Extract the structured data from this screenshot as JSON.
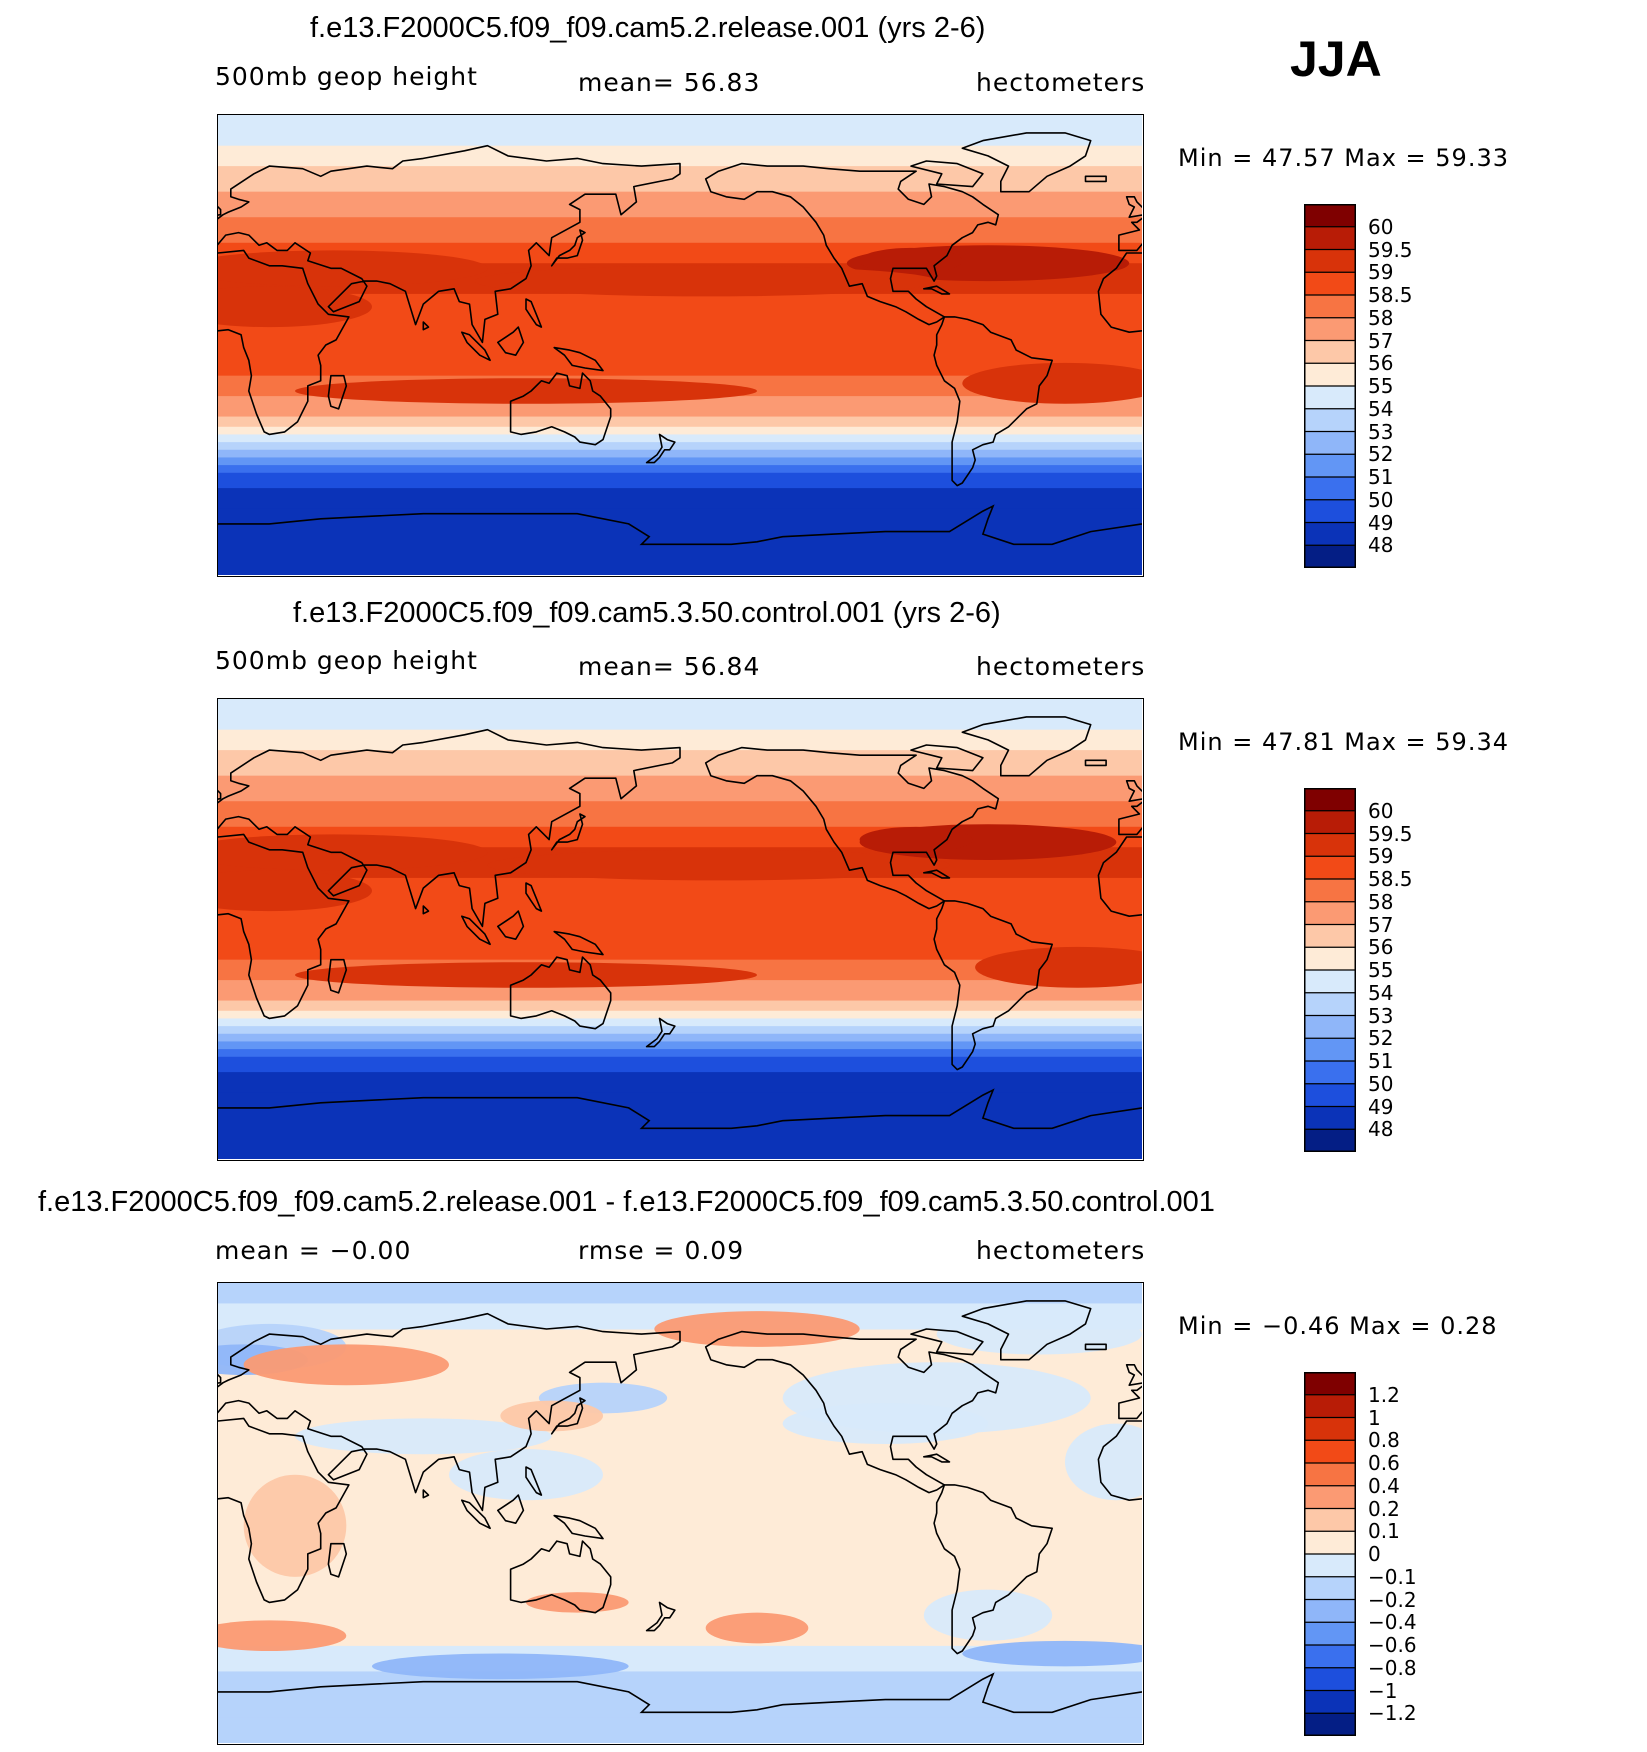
{
  "season": "JJA",
  "panels": [
    {
      "id": "panel1",
      "title": "f.e13.F2000C5.f09_f09.cam5.2.release.001 (yrs 2-6)",
      "left_text": "500mb  geop  height",
      "center_text": "mean=    56.83",
      "right_text": "hectometers",
      "minmax": "Min  =    47.57  Max  =    59.33",
      "kind": "field"
    },
    {
      "id": "panel2",
      "title": "f.e13.F2000C5.f09_f09.cam5.3.50.control.001 (yrs 2-6)",
      "left_text": "500mb  geop  height",
      "center_text": "mean=    56.84",
      "right_text": "hectometers",
      "minmax": "Min  =    47.81  Max  =    59.34",
      "kind": "field"
    },
    {
      "id": "panel3",
      "title": "f.e13.F2000C5.f09_f09.cam5.2.release.001 - f.e13.F2000C5.f09_f09.cam5.3.50.control.001",
      "left_text": "mean  =    −0.00",
      "center_text": "rmse  =     0.09",
      "right_text": "hectometers",
      "minmax": "Min  =   −0.46  Max  =     0.28",
      "kind": "diff"
    }
  ],
  "colorbar_field": {
    "labels": [
      "60",
      "59.5",
      "59",
      "58.5",
      "58",
      "57",
      "56",
      "55",
      "54",
      "53",
      "52",
      "51",
      "50",
      "49",
      "48"
    ],
    "colors": [
      "#7f0000",
      "#b81c06",
      "#d8330a",
      "#f24a17",
      "#f77443",
      "#fb9a73",
      "#fdc8a8",
      "#feebd7",
      "#d8eafb",
      "#b6d3fb",
      "#8fb6f9",
      "#6296f5",
      "#3a70ee",
      "#1d4fdd",
      "#0b33b8",
      "#041e85"
    ]
  },
  "colorbar_diff": {
    "labels": [
      "1.2",
      "1",
      "0.8",
      "0.6",
      "0.4",
      "0.2",
      "0.1",
      "0",
      "−0.1",
      "−0.2",
      "−0.4",
      "−0.6",
      "−0.8",
      "−1",
      "−1.2"
    ],
    "colors": [
      "#7f0000",
      "#b81c06",
      "#d8330a",
      "#f24a17",
      "#f77443",
      "#fb9a73",
      "#fdc8a8",
      "#feebd7",
      "#d8eafb",
      "#b6d3fb",
      "#8fb6f9",
      "#6296f5",
      "#3a70ee",
      "#1d4fdd",
      "#0b33b8",
      "#041e85"
    ]
  }
}
